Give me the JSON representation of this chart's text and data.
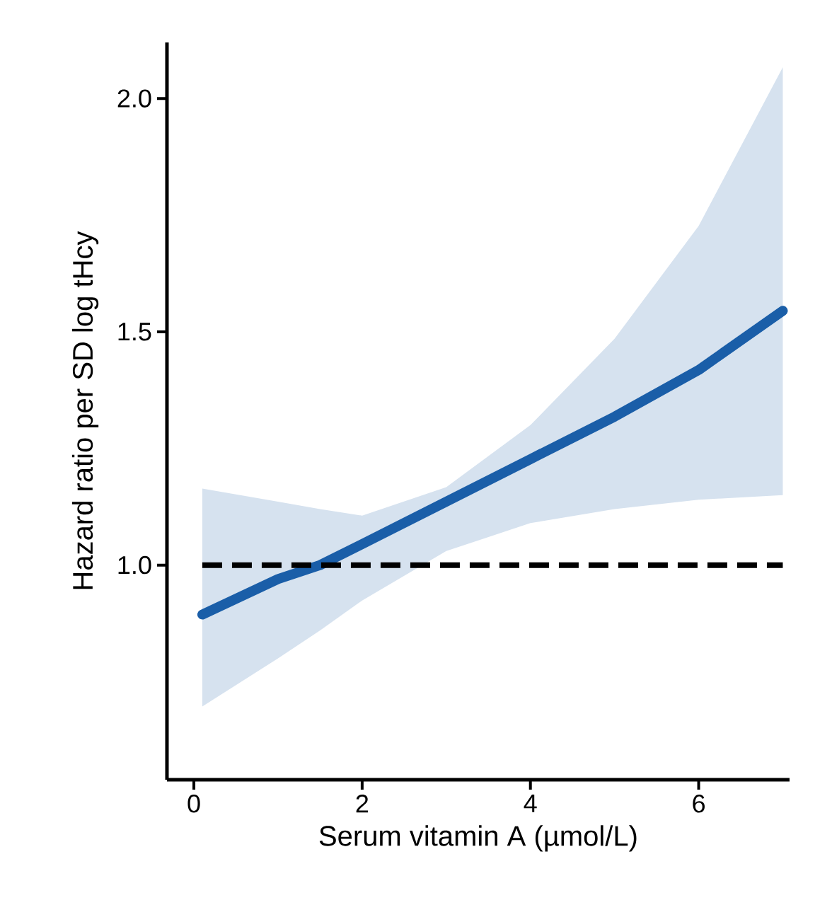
{
  "chart_data": {
    "type": "line",
    "xlabel": "Serum vitamin A (µmol/L)",
    "ylabel": "Hazard ratio per SD log tHcy",
    "xlim": [
      -0.32,
      7.08
    ],
    "ylim": [
      0.54,
      2.12
    ],
    "xticks": [
      0,
      2,
      4,
      6
    ],
    "yticks": [
      {
        "value": 1.0,
        "label": "1.0"
      },
      {
        "value": 1.5,
        "label": "1.5"
      },
      {
        "value": 2.0,
        "label": "2.0"
      }
    ],
    "x": [
      0.1,
      1,
      1.5,
      2,
      3,
      4,
      5,
      6,
      7
    ],
    "series": [
      {
        "color": "#1a5ea8",
        "values": [
          0.894,
          0.97,
          1.0,
          1.045,
          1.136,
          1.227,
          1.318,
          1.418,
          1.545
        ],
        "lower": [
          0.697,
          0.8,
          0.86,
          0.924,
          1.03,
          1.09,
          1.12,
          1.14,
          1.15
        ],
        "upper": [
          1.164,
          1.136,
          1.12,
          1.106,
          1.167,
          1.3,
          1.485,
          1.727,
          2.067
        ]
      }
    ],
    "ref_lines": [
      {
        "axis": "y",
        "value": 1.0,
        "color": "#000000",
        "line_style": "dashed"
      }
    ],
    "grid": false,
    "marker": "none",
    "line_style": "solid"
  }
}
